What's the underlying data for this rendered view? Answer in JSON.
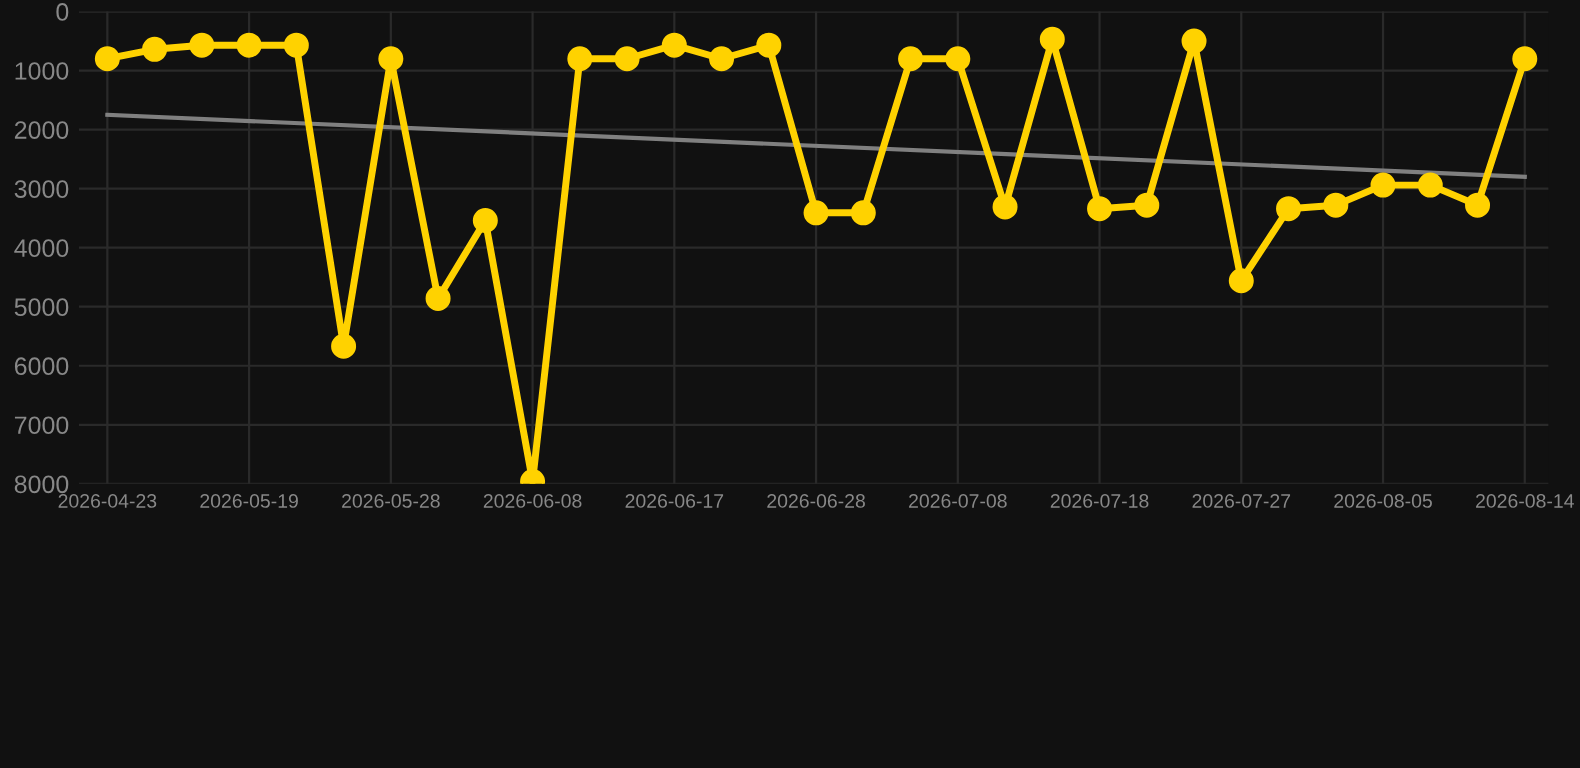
{
  "chart_data": {
    "type": "line",
    "categories": [
      "2026-04-23",
      null,
      null,
      "2026-05-19",
      null,
      null,
      "2026-05-28",
      null,
      null,
      "2026-06-08",
      null,
      null,
      "2026-06-17",
      null,
      null,
      "2026-06-28",
      null,
      null,
      "2026-07-08",
      null,
      null,
      "2026-07-18",
      null,
      null,
      "2026-07-27",
      null,
      null,
      "2026-08-05",
      null,
      null,
      "2026-08-14"
    ],
    "series": [
      {
        "color": "#ffd200",
        "values": [
          800,
          640,
          570,
          570,
          570,
          5670,
          800,
          4860,
          3540,
          7960,
          800,
          800,
          570,
          800,
          570,
          3410,
          3410,
          800,
          800,
          3310,
          470,
          3340,
          3280,
          500,
          4560,
          3340,
          3280,
          2940,
          2940,
          3280,
          800
        ],
        "marker": "circle"
      },
      {
        "type": "line",
        "color": "#808080",
        "values": [
          1750,
          null,
          null,
          null,
          null,
          null,
          null,
          null,
          null,
          null,
          null,
          null,
          null,
          null,
          null,
          null,
          null,
          null,
          null,
          null,
          null,
          null,
          null,
          null,
          null,
          null,
          null,
          null,
          null,
          null,
          2800
        ],
        "marker": "none"
      }
    ],
    "ylim": [
      8000,
      0
    ],
    "yticks": [
      0,
      1000,
      2000,
      3000,
      4000,
      5000,
      6000,
      7000,
      8000
    ],
    "grid": true
  }
}
